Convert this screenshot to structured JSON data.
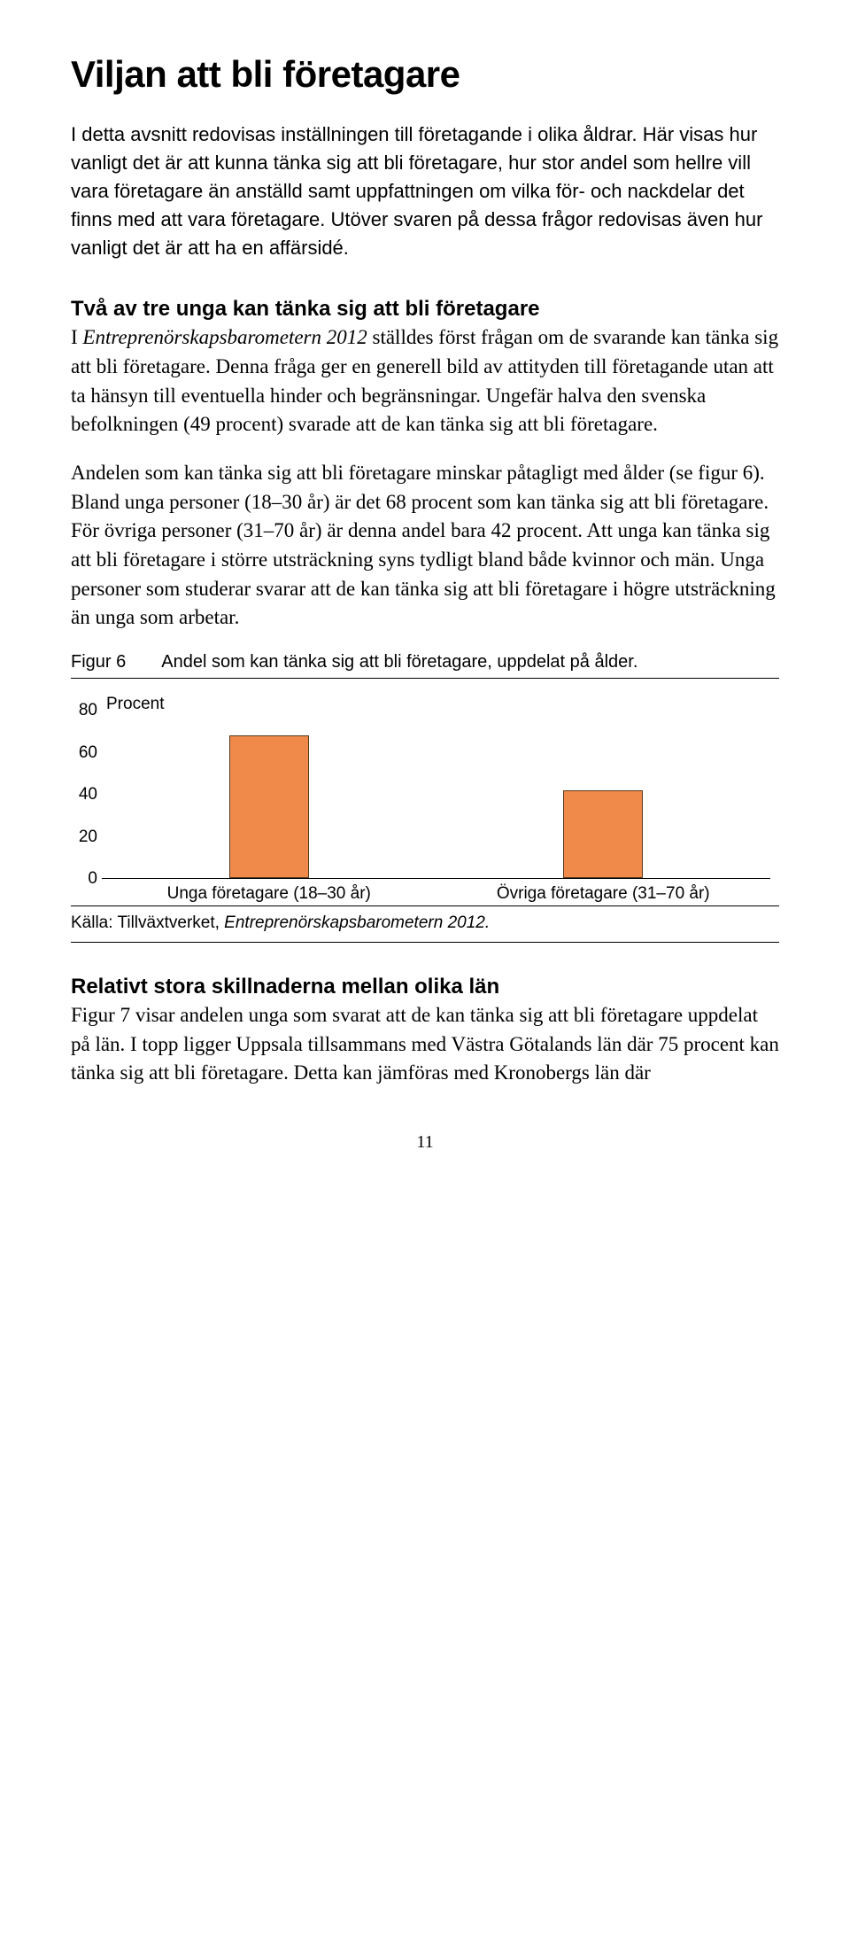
{
  "title": "Viljan att bli företagare",
  "intro": "I detta avsnitt redovisas inställningen till företagande i olika åldrar. Här visas hur vanligt det är att kunna tänka sig att bli företagare, hur stor andel som hellre vill vara företagare än anställd samt uppfattningen om vilka för- och nackdelar det finns med att vara företagare. Utöver svaren på dessa frågor redovisas även hur vanligt det är att ha en affärsidé.",
  "section1": {
    "heading": "Två av tre unga kan tänka sig att bli företagare",
    "para1_pre": "I ",
    "para1_em": "Entreprenörskapsbarometern 2012",
    "para1_post": " ställdes först frågan om de svarande kan tänka sig att bli företagare. Denna fråga ger en generell bild av attityden till företagande utan att ta hänsyn till eventuella hinder och begränsningar. Ungefär halva den svenska befolkningen (49 procent) svarade att de kan tänka sig att bli företagare.",
    "para2": "Andelen som kan tänka sig att bli företagare minskar påtagligt med ålder (se figur 6). Bland unga personer (18–30 år) är det 68 procent som kan tänka sig att bli företagare. För övriga personer (31–70 år) är denna andel bara 42 procent. Att unga kan tänka sig att bli företagare i större utsträckning syns tydligt bland både kvinnor och män. Unga personer som studerar svarar att de kan tänka sig att bli företagare i högre utsträckning än unga som arbetar."
  },
  "figure": {
    "label": "Figur 6",
    "caption": "Andel som kan tänka sig att bli företagare, uppdelat på ålder.",
    "y_label": "Procent",
    "y_max": 80,
    "y_ticks": [
      80,
      60,
      40,
      20,
      0
    ],
    "bars": [
      {
        "label": "Unga företagare (18–30 år)",
        "value": 68
      },
      {
        "label": "Övriga företagare (31–70 år)",
        "value": 42
      }
    ],
    "bar_color": "#ef8a4a",
    "bar_border": "#5a3a1a",
    "source_pre": "Källa: Tillväxtverket, ",
    "source_em": "Entreprenörskapsbarometern 2012."
  },
  "section2": {
    "heading": "Relativt stora skillnaderna mellan olika län",
    "para": "Figur 7 visar andelen unga som svarat att de kan tänka sig att bli företagare uppdelat på län. I topp ligger Uppsala tillsammans med Västra Götalands län där 75 procent kan tänka sig att bli företagare. Detta kan jämföras med Kronobergs län där"
  },
  "page_number": "11"
}
